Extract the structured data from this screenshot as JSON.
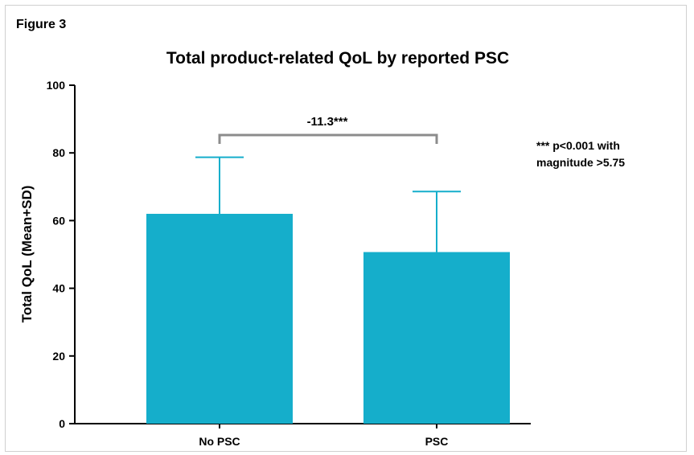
{
  "figure_label": "Figure 3",
  "chart_data": {
    "type": "bar",
    "title": "Total product-related QoL by reported PSC",
    "xlabel": "",
    "ylabel": "Total QoL (Mean+SD)",
    "categories": [
      "No PSC",
      "PSC"
    ],
    "values": [
      62,
      50.7
    ],
    "sd": [
      16.7,
      17.9
    ],
    "ylim": [
      0,
      100
    ],
    "yticks": [
      "0",
      "20",
      "40",
      "60",
      "80",
      "100"
    ],
    "bar_color": "#15aecb",
    "bracket_color": "#8c8c8c",
    "comparison_label": "-11.3***",
    "note_lines": [
      "*** p<0.001 with",
      "magnitude >5.75"
    ],
    "grid": false,
    "legend": "none"
  }
}
